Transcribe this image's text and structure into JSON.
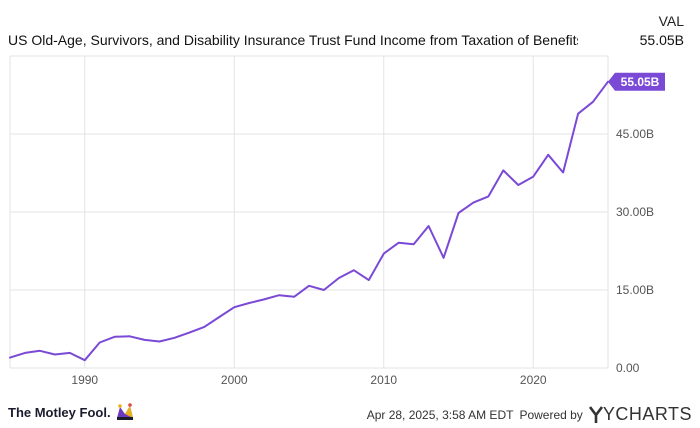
{
  "header": {
    "value_heading": "VAL",
    "series_name": "US Old-Age, Survivors, and Disability Insurance Trust Fund Income from Taxation of Benefits Recei...",
    "series_value": "55.05B"
  },
  "footer": {
    "brand_name": "The Motley Fool.",
    "timestamp": "Apr 28, 2025, 3:58 AM EDT",
    "powered_by": "Powered by",
    "provider": "YCHARTS"
  },
  "colors": {
    "line": "#7a49d6",
    "grid": "#e3e3e3",
    "label": "#555555",
    "badge_text": "#ffffff"
  },
  "chart_data": {
    "type": "line",
    "x_unit": "year",
    "y_unit": "B",
    "xlim": [
      1985,
      2025
    ],
    "ylim": [
      0,
      60
    ],
    "x_ticks": [
      1990,
      2000,
      2010,
      2020
    ],
    "x_tick_labels": [
      "1990",
      "2000",
      "2010",
      "2020"
    ],
    "y_ticks": [
      0,
      15,
      30,
      45
    ],
    "y_tick_labels": [
      "0.00",
      "15.00B",
      "30.00B",
      "45.00B"
    ],
    "grid": true,
    "last_value_label": "55.05B",
    "series": [
      {
        "x": [
          1985,
          1986,
          1987,
          1988,
          1989,
          1990,
          1991,
          1992,
          1993,
          1994,
          1995,
          1996,
          1997,
          1998,
          1999,
          2000,
          2001,
          2002,
          2003,
          2004,
          2005,
          2006,
          2007,
          2008,
          2009,
          2010,
          2011,
          2012,
          2013,
          2014,
          2015,
          2016,
          2017,
          2018,
          2019,
          2020,
          2021,
          2022,
          2023,
          2024,
          2025
        ],
        "values": [
          2.0,
          2.9,
          3.3,
          2.6,
          2.9,
          1.5,
          4.9,
          6.0,
          6.1,
          5.4,
          5.1,
          5.8,
          6.8,
          7.9,
          9.8,
          11.7,
          12.5,
          13.2,
          14.0,
          13.7,
          15.8,
          15.0,
          17.3,
          18.8,
          16.9,
          22.0,
          24.1,
          23.8,
          27.3,
          21.2,
          29.8,
          31.8,
          33.0,
          38.0,
          35.2,
          36.8,
          41.0,
          37.6,
          48.9,
          51.2,
          55.05
        ]
      }
    ]
  }
}
